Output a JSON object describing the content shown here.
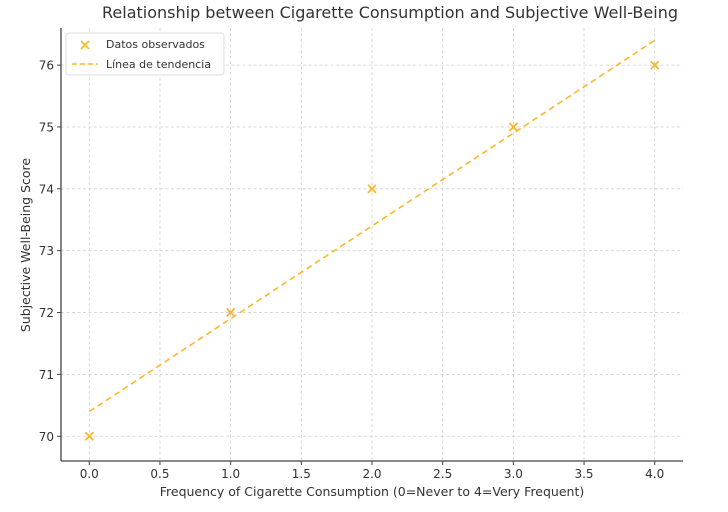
{
  "chart_data": {
    "type": "scatter",
    "title": "Relationship between Cigarette Consumption and Subjective Well-Being",
    "xlabel": "Frequency of Cigarette Consumption (0=Never to 4=Very Frequent)",
    "ylabel": "Subjective Well-Being Score",
    "xlim": [
      -0.2,
      4.2
    ],
    "ylim": [
      69.6,
      76.6
    ],
    "x_ticks": [
      0.0,
      0.5,
      1.0,
      1.5,
      2.0,
      2.5,
      3.0,
      3.5,
      4.0
    ],
    "x_tick_labels": [
      "0.0",
      "0.5",
      "1.0",
      "1.5",
      "2.0",
      "2.5",
      "3.0",
      "3.5",
      "4.0"
    ],
    "y_ticks": [
      70,
      71,
      72,
      73,
      74,
      75,
      76
    ],
    "y_tick_labels": [
      "70",
      "71",
      "72",
      "73",
      "74",
      "75",
      "76"
    ],
    "grid": true,
    "legend_position": "upper left",
    "series": [
      {
        "name": "Datos observados",
        "kind": "scatter",
        "marker": "x",
        "color": "#FBB829",
        "x": [
          0,
          1,
          2,
          3,
          4
        ],
        "y": [
          70,
          72,
          74,
          75,
          76
        ]
      },
      {
        "name": "Línea de tendencia",
        "kind": "line",
        "style": "dashed",
        "color": "#FBB829",
        "x": [
          0,
          4
        ],
        "y": [
          70.4,
          76.4
        ]
      }
    ]
  }
}
